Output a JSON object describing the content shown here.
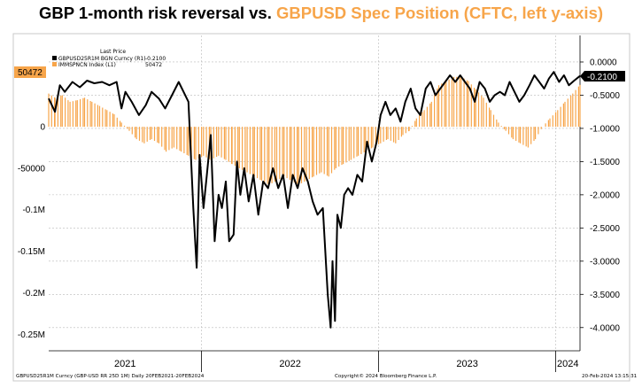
{
  "title": {
    "part1": "GBP 1-month risk reversal vs. ",
    "part2": "GBPUSD Spec Position (CFTC, left y-axis)"
  },
  "colors": {
    "accent_orange": "#F7A54A",
    "rr_line": "#000000",
    "grid": "#b9b9b9"
  },
  "legend": {
    "header": "Last Price",
    "items": [
      {
        "label": "GBPUSD25R1M BGN Curncy (R1)",
        "value": "-0.2100",
        "color": "#000000"
      },
      {
        "label": "IMMSPNCN Index (L1)",
        "value": "50472",
        "color": "#F7A54A"
      }
    ]
  },
  "badges": {
    "left": "50472",
    "right": "-0.2100"
  },
  "footer": {
    "left": "GBPUSD25R1M Curncy (GBP-USD RR 25D 1M)  Daily 20FEB2021-20FEB2024",
    "center": "Copyright© 2024 Bloomberg Finance L.P.",
    "right": "20-Feb-2024 13:15:31"
  },
  "chart_data": {
    "type": "line",
    "date_range": [
      "2021-02-20",
      "2024-02-20"
    ],
    "x_ticks": [
      "2021",
      "2022",
      "2023",
      "2024"
    ],
    "y_left": {
      "label": "IMMSPNCN Index (L1)",
      "range": [
        -270000,
        110000
      ],
      "ticks": [
        0,
        -50000,
        -100000,
        -150000,
        -200000,
        -250000
      ],
      "tick_labels": [
        "0",
        "-50000",
        "-0.1M",
        "-0.15M",
        "-0.2M",
        "-0.25M"
      ]
    },
    "y_right": {
      "label": "GBPUSD25R1M BGN Curncy (R1)",
      "range": [
        -4.35,
        0.4
      ],
      "ticks": [
        0,
        -0.5,
        -1,
        -1.5,
        -2,
        -2.5,
        -3,
        -3.5,
        -4
      ],
      "tick_labels": [
        "0.0000",
        "-0.5000",
        "-1.0000",
        "-1.5000",
        "-2.0000",
        "-2.5000",
        "-3.0000",
        "-3.5000",
        "-4.0000"
      ]
    },
    "series": [
      {
        "name": "GBPUSD25R1M BGN Curncy (R1)",
        "kind": "line",
        "axis": "right",
        "color": "#000000",
        "points": [
          [
            "2021-02-20",
            -0.55
          ],
          [
            "2021-03-05",
            -0.75
          ],
          [
            "2021-03-15",
            -0.35
          ],
          [
            "2021-03-25",
            -0.45
          ],
          [
            "2021-04-10",
            -0.3
          ],
          [
            "2021-04-25",
            -0.38
          ],
          [
            "2021-05-10",
            -0.28
          ],
          [
            "2021-05-25",
            -0.32
          ],
          [
            "2021-06-10",
            -0.3
          ],
          [
            "2021-06-25",
            -0.35
          ],
          [
            "2021-07-10",
            -0.3
          ],
          [
            "2021-07-20",
            -0.7
          ],
          [
            "2021-07-28",
            -0.45
          ],
          [
            "2021-08-10",
            -0.6
          ],
          [
            "2021-08-25",
            -0.8
          ],
          [
            "2021-09-08",
            -0.65
          ],
          [
            "2021-09-20",
            -0.45
          ],
          [
            "2021-10-05",
            -0.55
          ],
          [
            "2021-10-18",
            -0.7
          ],
          [
            "2021-11-01",
            -0.5
          ],
          [
            "2021-11-15",
            -0.3
          ],
          [
            "2021-11-25",
            -0.45
          ],
          [
            "2021-12-05",
            -0.6
          ],
          [
            "2021-12-15",
            -2.2
          ],
          [
            "2021-12-22",
            -3.1
          ],
          [
            "2021-12-28",
            -1.4
          ],
          [
            "2022-01-05",
            -2.2
          ],
          [
            "2022-01-12",
            -1.7
          ],
          [
            "2022-01-20",
            -1.1
          ],
          [
            "2022-01-28",
            -2.7
          ],
          [
            "2022-02-05",
            -2.0
          ],
          [
            "2022-02-12",
            -2.2
          ],
          [
            "2022-02-20",
            -1.8
          ],
          [
            "2022-02-27",
            -2.7
          ],
          [
            "2022-03-08",
            -2.6
          ],
          [
            "2022-03-15",
            -1.5
          ],
          [
            "2022-03-22",
            -2.0
          ],
          [
            "2022-03-30",
            -1.6
          ],
          [
            "2022-04-08",
            -2.1
          ],
          [
            "2022-04-18",
            -1.7
          ],
          [
            "2022-04-28",
            -2.3
          ],
          [
            "2022-05-08",
            -1.8
          ],
          [
            "2022-05-18",
            -1.9
          ],
          [
            "2022-05-28",
            -1.6
          ],
          [
            "2022-06-08",
            -1.9
          ],
          [
            "2022-06-18",
            -1.7
          ],
          [
            "2022-06-28",
            -2.2
          ],
          [
            "2022-07-08",
            -1.7
          ],
          [
            "2022-07-18",
            -1.9
          ],
          [
            "2022-07-28",
            -1.6
          ],
          [
            "2022-08-08",
            -1.8
          ],
          [
            "2022-08-18",
            -2.1
          ],
          [
            "2022-08-28",
            -2.3
          ],
          [
            "2022-09-08",
            -2.2
          ],
          [
            "2022-09-18",
            -3.5
          ],
          [
            "2022-09-24",
            -4.0
          ],
          [
            "2022-09-28",
            -3.0
          ],
          [
            "2022-10-03",
            -3.9
          ],
          [
            "2022-10-08",
            -2.3
          ],
          [
            "2022-10-15",
            -2.5
          ],
          [
            "2022-10-22",
            -2.0
          ],
          [
            "2022-10-30",
            -1.9
          ],
          [
            "2022-11-08",
            -2.0
          ],
          [
            "2022-11-18",
            -1.7
          ],
          [
            "2022-11-28",
            -1.8
          ],
          [
            "2022-12-08",
            -1.2
          ],
          [
            "2022-12-18",
            -1.5
          ],
          [
            "2022-12-28",
            -1.2
          ],
          [
            "2023-01-05",
            -0.8
          ],
          [
            "2023-01-15",
            -0.6
          ],
          [
            "2023-01-25",
            -0.8
          ],
          [
            "2023-02-05",
            -0.7
          ],
          [
            "2023-02-15",
            -0.9
          ],
          [
            "2023-02-25",
            -0.6
          ],
          [
            "2023-03-08",
            -0.4
          ],
          [
            "2023-03-18",
            -0.7
          ],
          [
            "2023-03-28",
            -0.8
          ],
          [
            "2023-04-08",
            -0.4
          ],
          [
            "2023-04-18",
            -0.3
          ],
          [
            "2023-04-28",
            -0.5
          ],
          [
            "2023-05-08",
            -0.4
          ],
          [
            "2023-05-18",
            -0.3
          ],
          [
            "2023-05-28",
            -0.2
          ],
          [
            "2023-06-08",
            -0.3
          ],
          [
            "2023-06-18",
            -0.2
          ],
          [
            "2023-06-28",
            -0.3
          ],
          [
            "2023-07-08",
            -0.4
          ],
          [
            "2023-07-18",
            -0.6
          ],
          [
            "2023-07-28",
            -0.3
          ],
          [
            "2023-08-08",
            -0.4
          ],
          [
            "2023-08-18",
            -0.6
          ],
          [
            "2023-08-28",
            -0.5
          ],
          [
            "2023-09-08",
            -0.45
          ],
          [
            "2023-09-18",
            -0.5
          ],
          [
            "2023-09-28",
            -0.3
          ],
          [
            "2023-10-08",
            -0.45
          ],
          [
            "2023-10-18",
            -0.6
          ],
          [
            "2023-10-28",
            -0.5
          ],
          [
            "2023-11-08",
            -0.35
          ],
          [
            "2023-11-18",
            -0.2
          ],
          [
            "2023-11-28",
            -0.3
          ],
          [
            "2023-12-08",
            -0.4
          ],
          [
            "2023-12-18",
            -0.25
          ],
          [
            "2023-12-28",
            -0.15
          ],
          [
            "2024-01-08",
            -0.3
          ],
          [
            "2024-01-18",
            -0.2
          ],
          [
            "2024-01-28",
            -0.35
          ],
          [
            "2024-02-08",
            -0.28
          ],
          [
            "2024-02-20",
            -0.21
          ]
        ]
      },
      {
        "name": "IMMSPNCN Index (L1)",
        "kind": "bar",
        "axis": "left",
        "color": "#F7A54A",
        "points": [
          [
            "2021-02-20",
            40000
          ],
          [
            "2021-03-05",
            35000
          ],
          [
            "2021-03-20",
            38000
          ],
          [
            "2021-04-05",
            30000
          ],
          [
            "2021-04-20",
            32000
          ],
          [
            "2021-05-05",
            35000
          ],
          [
            "2021-05-20",
            30000
          ],
          [
            "2021-06-05",
            25000
          ],
          [
            "2021-06-20",
            20000
          ],
          [
            "2021-07-05",
            15000
          ],
          [
            "2021-07-20",
            5000
          ],
          [
            "2021-08-05",
            -5000
          ],
          [
            "2021-08-20",
            -15000
          ],
          [
            "2021-09-05",
            -20000
          ],
          [
            "2021-09-20",
            -15000
          ],
          [
            "2021-10-05",
            -20000
          ],
          [
            "2021-10-20",
            -30000
          ],
          [
            "2021-11-05",
            -25000
          ],
          [
            "2021-11-20",
            -30000
          ],
          [
            "2021-12-05",
            -35000
          ],
          [
            "2021-12-20",
            -40000
          ],
          [
            "2022-01-05",
            -35000
          ],
          [
            "2022-01-20",
            -40000
          ],
          [
            "2022-02-05",
            -35000
          ],
          [
            "2022-02-20",
            -40000
          ],
          [
            "2022-03-05",
            -45000
          ],
          [
            "2022-03-20",
            -50000
          ],
          [
            "2022-04-05",
            -55000
          ],
          [
            "2022-04-20",
            -60000
          ],
          [
            "2022-05-05",
            -65000
          ],
          [
            "2022-05-20",
            -70000
          ],
          [
            "2022-06-05",
            -65000
          ],
          [
            "2022-06-20",
            -60000
          ],
          [
            "2022-07-05",
            -65000
          ],
          [
            "2022-07-20",
            -70000
          ],
          [
            "2022-08-05",
            -65000
          ],
          [
            "2022-08-20",
            -60000
          ],
          [
            "2022-09-05",
            -55000
          ],
          [
            "2022-09-20",
            -60000
          ],
          [
            "2022-10-05",
            -50000
          ],
          [
            "2022-10-20",
            -45000
          ],
          [
            "2022-11-05",
            -40000
          ],
          [
            "2022-11-20",
            -35000
          ],
          [
            "2022-12-05",
            -30000
          ],
          [
            "2022-12-20",
            -25000
          ],
          [
            "2023-01-05",
            -20000
          ],
          [
            "2023-01-20",
            -15000
          ],
          [
            "2023-02-05",
            -20000
          ],
          [
            "2023-02-20",
            -10000
          ],
          [
            "2023-03-05",
            -5000
          ],
          [
            "2023-03-20",
            10000
          ],
          [
            "2023-04-05",
            20000
          ],
          [
            "2023-04-20",
            30000
          ],
          [
            "2023-05-05",
            50000
          ],
          [
            "2023-05-20",
            55000
          ],
          [
            "2023-06-05",
            60000
          ],
          [
            "2023-06-20",
            60000
          ],
          [
            "2023-07-05",
            55000
          ],
          [
            "2023-07-20",
            45000
          ],
          [
            "2023-08-05",
            35000
          ],
          [
            "2023-08-20",
            20000
          ],
          [
            "2023-09-05",
            5000
          ],
          [
            "2023-09-20",
            -5000
          ],
          [
            "2023-10-05",
            -15000
          ],
          [
            "2023-10-20",
            -20000
          ],
          [
            "2023-11-05",
            -25000
          ],
          [
            "2023-11-20",
            -15000
          ],
          [
            "2023-12-05",
            0
          ],
          [
            "2023-12-20",
            10000
          ],
          [
            "2024-01-05",
            20000
          ],
          [
            "2024-01-20",
            30000
          ],
          [
            "2024-02-05",
            40000
          ],
          [
            "2024-02-20",
            50472
          ]
        ]
      }
    ],
    "grid": true,
    "legend_position": "top-left"
  }
}
